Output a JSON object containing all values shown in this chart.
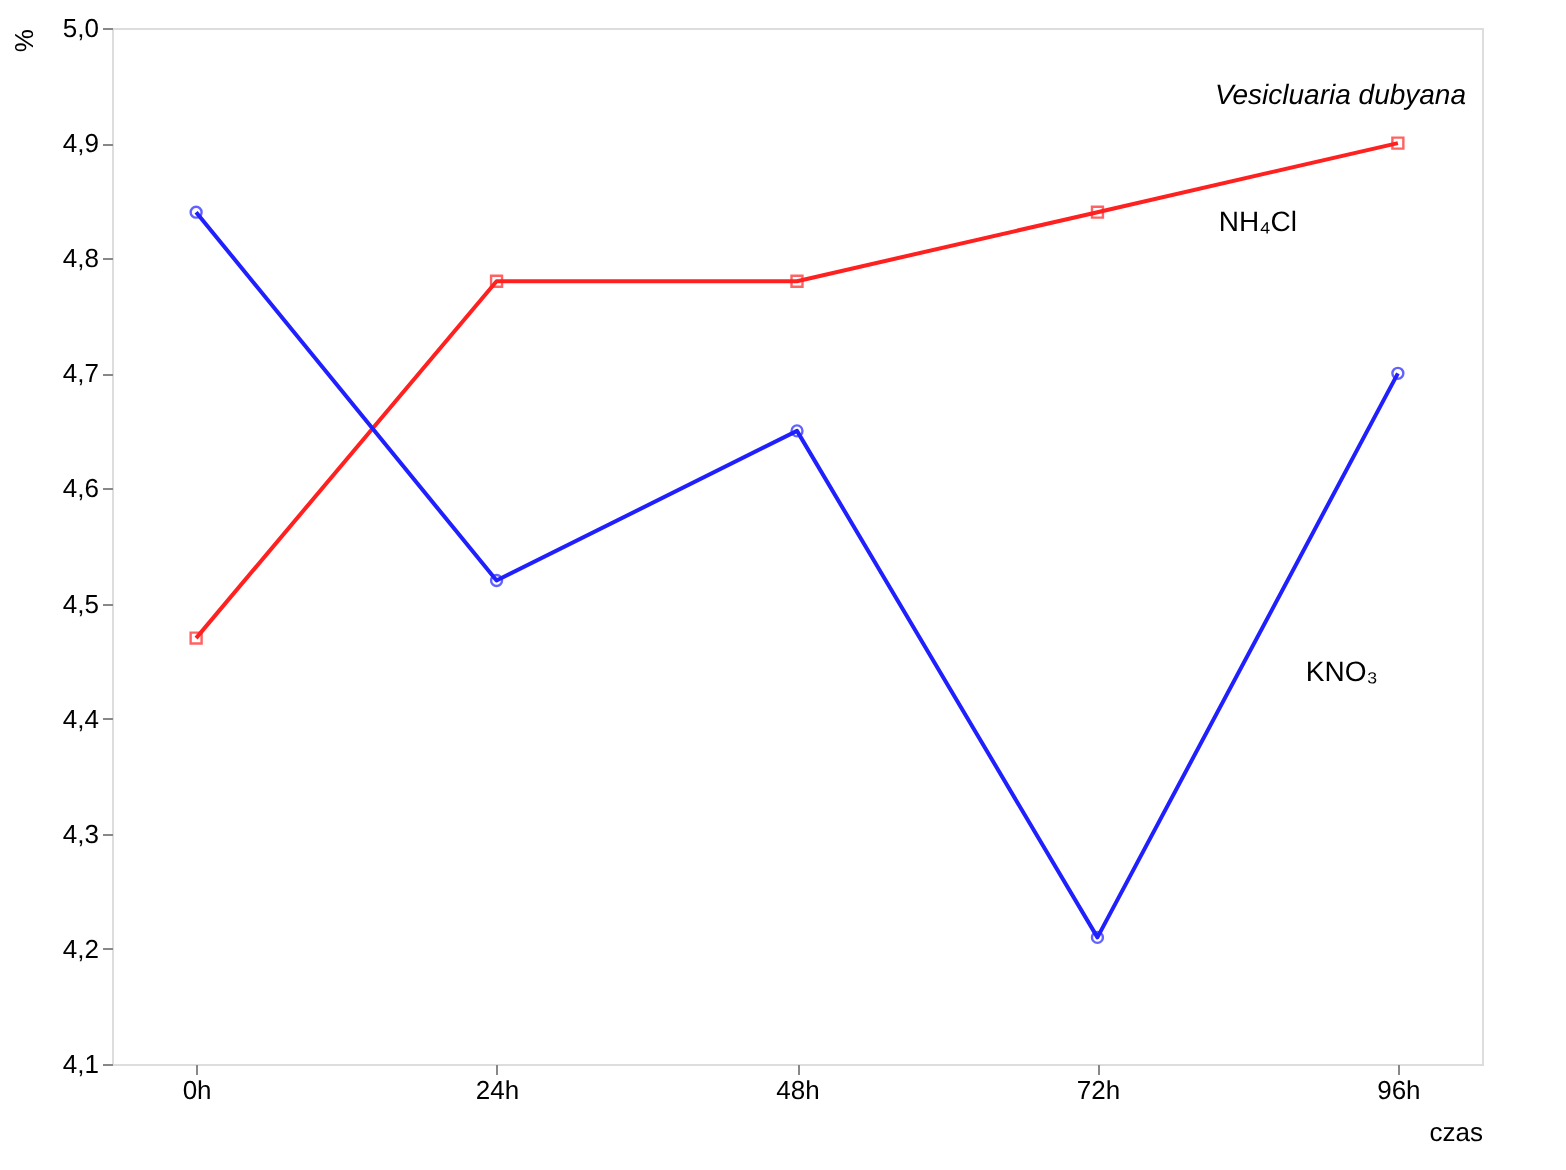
{
  "chart_data": {
    "type": "line",
    "title": "Vesicluaria dubyana",
    "xlabel": "czas",
    "ylabel": "%",
    "categories": [
      "0h",
      "24h",
      "48h",
      "72h",
      "96h"
    ],
    "series": [
      {
        "name": "NH₄Cl",
        "color": "#ff2020",
        "marker": "square",
        "values": [
          4.47,
          4.78,
          4.78,
          4.84,
          4.9
        ]
      },
      {
        "name": "KNO₃",
        "color": "#2020ff",
        "marker": "circle",
        "values": [
          4.84,
          4.52,
          4.65,
          4.21,
          4.7
        ]
      }
    ],
    "ylim": [
      4.1,
      5.0
    ],
    "yticks": [
      {
        "value": 4.1,
        "label": "4,1"
      },
      {
        "value": 4.2,
        "label": "4,2"
      },
      {
        "value": 4.3,
        "label": "4,3"
      },
      {
        "value": 4.4,
        "label": "4,4"
      },
      {
        "value": 4.5,
        "label": "4,5"
      },
      {
        "value": 4.6,
        "label": "4,6"
      },
      {
        "value": 4.7,
        "label": "4,7"
      },
      {
        "value": 4.8,
        "label": "4,8"
      },
      {
        "value": 4.9,
        "label": "4,9"
      },
      {
        "value": 5.0,
        "label": "5,0"
      }
    ],
    "grid": false,
    "line_style": "solid"
  }
}
